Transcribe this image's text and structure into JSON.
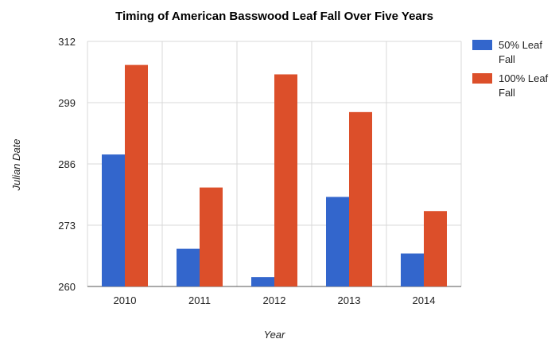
{
  "chart_data": {
    "type": "bar",
    "title": "Timing of American Basswood Leaf Fall Over Five Years",
    "xlabel": "Year",
    "ylabel": "Julian Date",
    "categories": [
      "2010",
      "2011",
      "2012",
      "2013",
      "2014"
    ],
    "series": [
      {
        "name": "50% Leaf Fall",
        "name_lines": [
          "50% Leaf",
          "Fall"
        ],
        "color": "#3366cc",
        "values": [
          288,
          268,
          262,
          279,
          267
        ]
      },
      {
        "name": "100% Leaf Fall",
        "name_lines": [
          "100% Leaf",
          "Fall"
        ],
        "color": "#dc4f2a",
        "values": [
          307,
          281,
          305,
          297,
          276
        ]
      }
    ],
    "ylim": [
      260,
      312
    ],
    "yticks": [
      260,
      273,
      286,
      299,
      312
    ],
    "grid": true,
    "legend_position": "right"
  }
}
